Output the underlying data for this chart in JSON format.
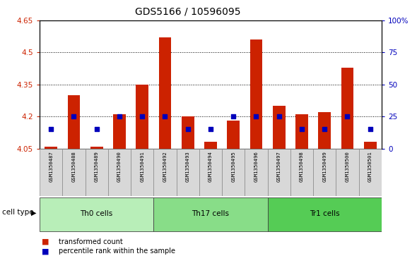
{
  "title": "GDS5166 / 10596095",
  "samples": [
    "GSM1350487",
    "GSM1350488",
    "GSM1350489",
    "GSM1350490",
    "GSM1350491",
    "GSM1350492",
    "GSM1350493",
    "GSM1350494",
    "GSM1350495",
    "GSM1350496",
    "GSM1350497",
    "GSM1350498",
    "GSM1350499",
    "GSM1350500",
    "GSM1350501"
  ],
  "transformed_counts": [
    4.06,
    4.3,
    4.06,
    4.21,
    4.35,
    4.57,
    4.2,
    4.08,
    4.18,
    4.56,
    4.25,
    4.21,
    4.22,
    4.43,
    4.08
  ],
  "percentile_ranks_pct": [
    15,
    25,
    15,
    25,
    25,
    25,
    15,
    15,
    25,
    25,
    25,
    15,
    15,
    25,
    15
  ],
  "cell_groups": [
    {
      "label": "Th0 cells",
      "start": 0,
      "end": 5,
      "color": "#b8eeb8"
    },
    {
      "label": "Th17 cells",
      "start": 5,
      "end": 10,
      "color": "#88dd88"
    },
    {
      "label": "Tr1 cells",
      "start": 10,
      "end": 15,
      "color": "#55cc55"
    }
  ],
  "ylim_left": [
    4.05,
    4.65
  ],
  "ylim_right": [
    0,
    100
  ],
  "yticks_left": [
    4.05,
    4.2,
    4.35,
    4.5,
    4.65
  ],
  "ytick_labels_left": [
    "4.05",
    "4.2",
    "4.35",
    "4.5",
    "4.65"
  ],
  "yticks_right": [
    0,
    25,
    50,
    75,
    100
  ],
  "ytick_labels_right": [
    "0",
    "25",
    "50",
    "75",
    "100%"
  ],
  "bar_color": "#cc2200",
  "dot_color": "#0000bb",
  "bar_width": 0.55,
  "dot_size": 22,
  "grid_yticks": [
    4.2,
    4.35,
    4.5
  ],
  "bg_plot": "#ffffff",
  "bg_xticklabels": "#d8d8d8",
  "legend_items": [
    "transformed count",
    "percentile rank within the sample"
  ],
  "cell_type_label": "cell type",
  "base_value": 4.05
}
